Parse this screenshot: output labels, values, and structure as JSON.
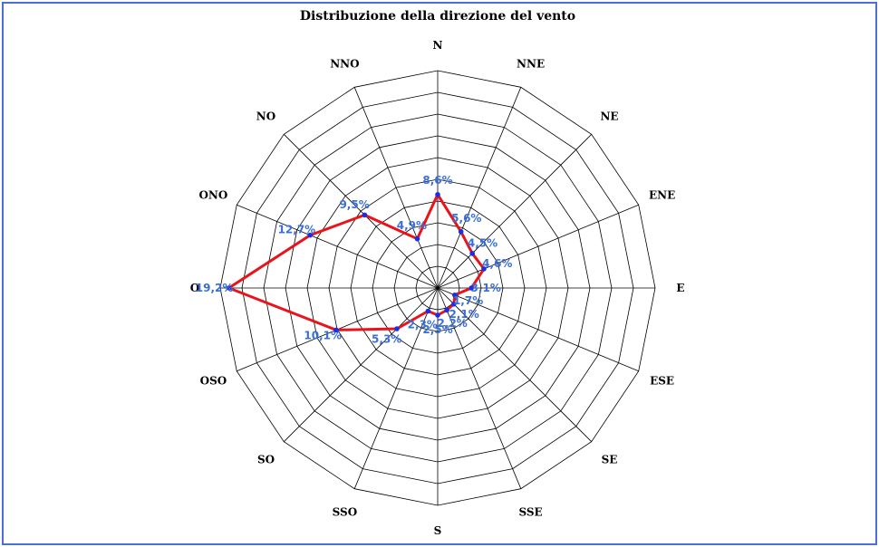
{
  "chart_data": {
    "type": "radar",
    "title": "Distribuzione della direzione del vento",
    "categories": [
      "N",
      "NNE",
      "NE",
      "ENE",
      "E",
      "ESE",
      "SE",
      "SSE",
      "S",
      "SSO",
      "SO",
      "OSO",
      "O",
      "ONO",
      "NO",
      "NNO"
    ],
    "values": [
      8.6,
      5.6,
      4.5,
      4.6,
      3.1,
      1.7,
      2.1,
      2.2,
      2.5,
      2.3,
      5.3,
      10.1,
      19.2,
      12.7,
      9.5,
      4.9
    ],
    "value_labels": [
      "8,6%",
      "5,6%",
      "4,5%",
      "4,6%",
      "3,1%",
      "1,7%",
      "2,1%",
      "2,2%",
      "2,5%",
      "2,3%",
      "5,3%",
      "10,1%",
      "19,2%",
      "12,7%",
      "9,5%",
      "4,9%"
    ],
    "rmax": 20,
    "rings": 10,
    "grid": true,
    "colors": {
      "line": "#e8141a",
      "marker": "#1a2ee6",
      "label": "#3a6fd8",
      "grid": "#000000",
      "frame": "#4a6fd6"
    }
  }
}
